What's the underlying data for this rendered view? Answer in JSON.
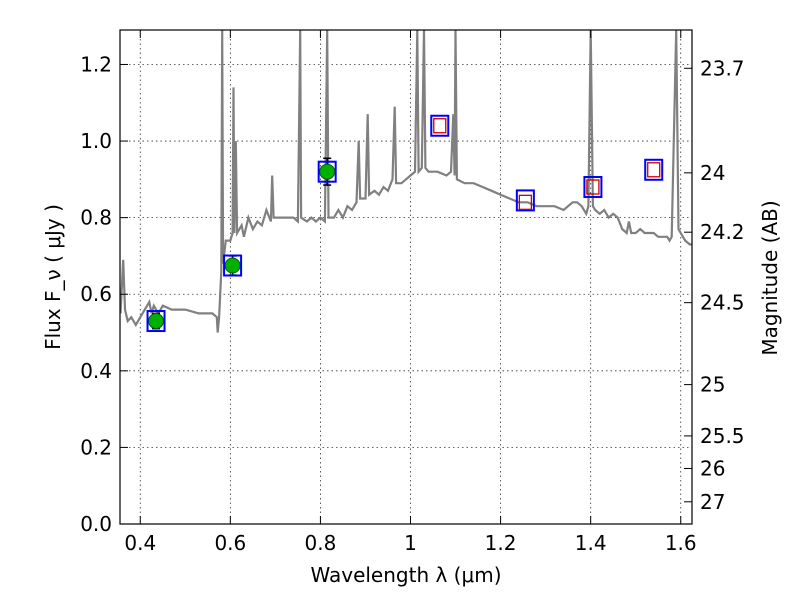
{
  "chart_data": {
    "type": "line",
    "xlabel": "Wavelength  λ (μm)",
    "ylabel": "Flux  F_ν  ( μJy )",
    "ylabel_right": "Magnitude (AB)",
    "xlim": [
      0.355,
      1.625
    ],
    "ylim": [
      0.0,
      1.29
    ],
    "grid": true,
    "x_ticks": [
      0.4,
      0.6,
      0.8,
      1.0,
      1.2,
      1.4,
      1.6
    ],
    "x_tick_labels": [
      "0.4",
      "0.6",
      "0.8",
      "1",
      "1.2",
      "1.4",
      "1.6"
    ],
    "y_ticks": [
      0.0,
      0.2,
      0.4,
      0.6,
      0.8,
      1.0,
      1.2
    ],
    "y_tick_labels": [
      "0.0",
      "0.2",
      "0.4",
      "0.6",
      "0.8",
      "1.0",
      "1.2"
    ],
    "right_ticks": [
      {
        "label": "23.7",
        "flux": 1.19
      },
      {
        "label": "24",
        "flux": 0.917
      },
      {
        "label": "24.2",
        "flux": 0.762
      },
      {
        "label": "24.5",
        "flux": 0.578
      },
      {
        "label": "25",
        "flux": 0.364
      },
      {
        "label": "25.5",
        "flux": 0.23
      },
      {
        "label": "26",
        "flux": 0.145
      },
      {
        "label": "27",
        "flux": 0.058
      }
    ],
    "model_spectrum": {
      "color": "#808080",
      "points": [
        [
          0.356,
          0.55
        ],
        [
          0.362,
          0.69
        ],
        [
          0.366,
          0.56
        ],
        [
          0.372,
          0.53
        ],
        [
          0.38,
          0.54
        ],
        [
          0.39,
          0.52
        ],
        [
          0.4,
          0.54
        ],
        [
          0.41,
          0.56
        ],
        [
          0.42,
          0.58
        ],
        [
          0.425,
          0.55
        ],
        [
          0.43,
          0.57
        ],
        [
          0.44,
          0.55
        ],
        [
          0.45,
          0.57
        ],
        [
          0.47,
          0.56
        ],
        [
          0.5,
          0.56
        ],
        [
          0.53,
          0.55
        ],
        [
          0.56,
          0.55
        ],
        [
          0.57,
          0.54
        ],
        [
          0.572,
          0.5
        ],
        [
          0.575,
          0.54
        ],
        [
          0.58,
          0.66
        ],
        [
          0.582,
          1.29
        ],
        [
          0.584,
          0.68
        ],
        [
          0.59,
          0.74
        ],
        [
          0.6,
          0.74
        ],
        [
          0.605,
          0.76
        ],
        [
          0.607,
          1.14
        ],
        [
          0.609,
          0.76
        ],
        [
          0.612,
          1.0
        ],
        [
          0.615,
          0.76
        ],
        [
          0.625,
          0.78
        ],
        [
          0.63,
          0.75
        ],
        [
          0.64,
          0.8
        ],
        [
          0.65,
          0.77
        ],
        [
          0.66,
          0.79
        ],
        [
          0.67,
          0.78
        ],
        [
          0.68,
          0.82
        ],
        [
          0.69,
          0.79
        ],
        [
          0.693,
          0.91
        ],
        [
          0.696,
          0.8
        ],
        [
          0.72,
          0.8
        ],
        [
          0.74,
          0.8
        ],
        [
          0.75,
          0.79
        ],
        [
          0.755,
          1.29
        ],
        [
          0.757,
          0.8
        ],
        [
          0.77,
          0.79
        ],
        [
          0.78,
          0.8
        ],
        [
          0.79,
          0.79
        ],
        [
          0.8,
          0.8
        ],
        [
          0.81,
          0.79
        ],
        [
          0.815,
          1.29
        ],
        [
          0.818,
          0.8
        ],
        [
          0.83,
          0.8
        ],
        [
          0.84,
          0.82
        ],
        [
          0.85,
          0.8
        ],
        [
          0.86,
          0.83
        ],
        [
          0.87,
          0.82
        ],
        [
          0.88,
          0.84
        ],
        [
          0.885,
          1.0
        ],
        [
          0.888,
          0.85
        ],
        [
          0.9,
          0.85
        ],
        [
          0.905,
          1.07
        ],
        [
          0.908,
          0.86
        ],
        [
          0.92,
          0.87
        ],
        [
          0.93,
          0.86
        ],
        [
          0.94,
          0.88
        ],
        [
          0.95,
          0.87
        ],
        [
          0.96,
          0.9
        ],
        [
          0.965,
          1.09
        ],
        [
          0.968,
          0.89
        ],
        [
          0.98,
          0.89
        ],
        [
          1.0,
          0.91
        ],
        [
          1.01,
          0.92
        ],
        [
          1.015,
          1.29
        ],
        [
          1.018,
          0.92
        ],
        [
          1.025,
          0.93
        ],
        [
          1.03,
          1.29
        ],
        [
          1.033,
          0.93
        ],
        [
          1.04,
          0.92
        ],
        [
          1.06,
          0.92
        ],
        [
          1.08,
          0.91
        ],
        [
          1.09,
          0.92
        ],
        [
          1.095,
          1.07
        ],
        [
          1.098,
          0.91
        ],
        [
          1.1,
          1.29
        ],
        [
          1.103,
          0.9
        ],
        [
          1.12,
          0.89
        ],
        [
          1.14,
          0.89
        ],
        [
          1.16,
          0.88
        ],
        [
          1.18,
          0.87
        ],
        [
          1.2,
          0.86
        ],
        [
          1.22,
          0.85
        ],
        [
          1.24,
          0.84
        ],
        [
          1.26,
          0.84
        ],
        [
          1.28,
          0.83
        ],
        [
          1.3,
          0.83
        ],
        [
          1.32,
          0.83
        ],
        [
          1.34,
          0.82
        ],
        [
          1.36,
          0.84
        ],
        [
          1.37,
          0.84
        ],
        [
          1.38,
          0.83
        ],
        [
          1.39,
          0.81
        ],
        [
          1.395,
          0.83
        ],
        [
          1.4,
          1.29
        ],
        [
          1.405,
          0.83
        ],
        [
          1.41,
          0.82
        ],
        [
          1.42,
          0.81
        ],
        [
          1.43,
          0.82
        ],
        [
          1.44,
          0.8
        ],
        [
          1.45,
          0.81
        ],
        [
          1.46,
          0.8
        ],
        [
          1.47,
          0.77
        ],
        [
          1.48,
          0.76
        ],
        [
          1.485,
          0.79
        ],
        [
          1.49,
          0.76
        ],
        [
          1.5,
          0.76
        ],
        [
          1.51,
          0.77
        ],
        [
          1.52,
          0.76
        ],
        [
          1.53,
          0.76
        ],
        [
          1.54,
          0.76
        ],
        [
          1.55,
          0.75
        ],
        [
          1.56,
          0.75
        ],
        [
          1.57,
          0.75
        ],
        [
          1.575,
          0.74
        ],
        [
          1.58,
          0.75
        ],
        [
          1.59,
          1.29
        ],
        [
          1.595,
          0.77
        ],
        [
          1.6,
          0.76
        ],
        [
          1.61,
          0.74
        ],
        [
          1.62,
          0.73
        ],
        [
          1.625,
          0.73
        ]
      ]
    },
    "measured_points": [
      {
        "x": 0.435,
        "y": 0.53,
        "err": 0.02
      },
      {
        "x": 0.605,
        "y": 0.675,
        "err": 0.025
      },
      {
        "x": 0.815,
        "y": 0.92,
        "err": 0.035
      }
    ],
    "model_photometry_points": [
      {
        "x": 0.435,
        "y": 0.53
      },
      {
        "x": 0.605,
        "y": 0.675
      },
      {
        "x": 0.815,
        "y": 0.92
      },
      {
        "x": 1.065,
        "y": 1.04
      },
      {
        "x": 1.255,
        "y": 0.845
      },
      {
        "x": 1.405,
        "y": 0.88
      },
      {
        "x": 1.54,
        "y": 0.925
      }
    ],
    "upper_points": [
      {
        "x": 1.065,
        "y": 1.04
      },
      {
        "x": 1.255,
        "y": 0.84
      },
      {
        "x": 1.405,
        "y": 0.88
      },
      {
        "x": 1.54,
        "y": 0.925
      }
    ],
    "colors": {
      "spectrum": "#808080",
      "measured_fill": "#00b000",
      "box_outer": "#0000ff",
      "box_inner": "#cc0000"
    }
  }
}
